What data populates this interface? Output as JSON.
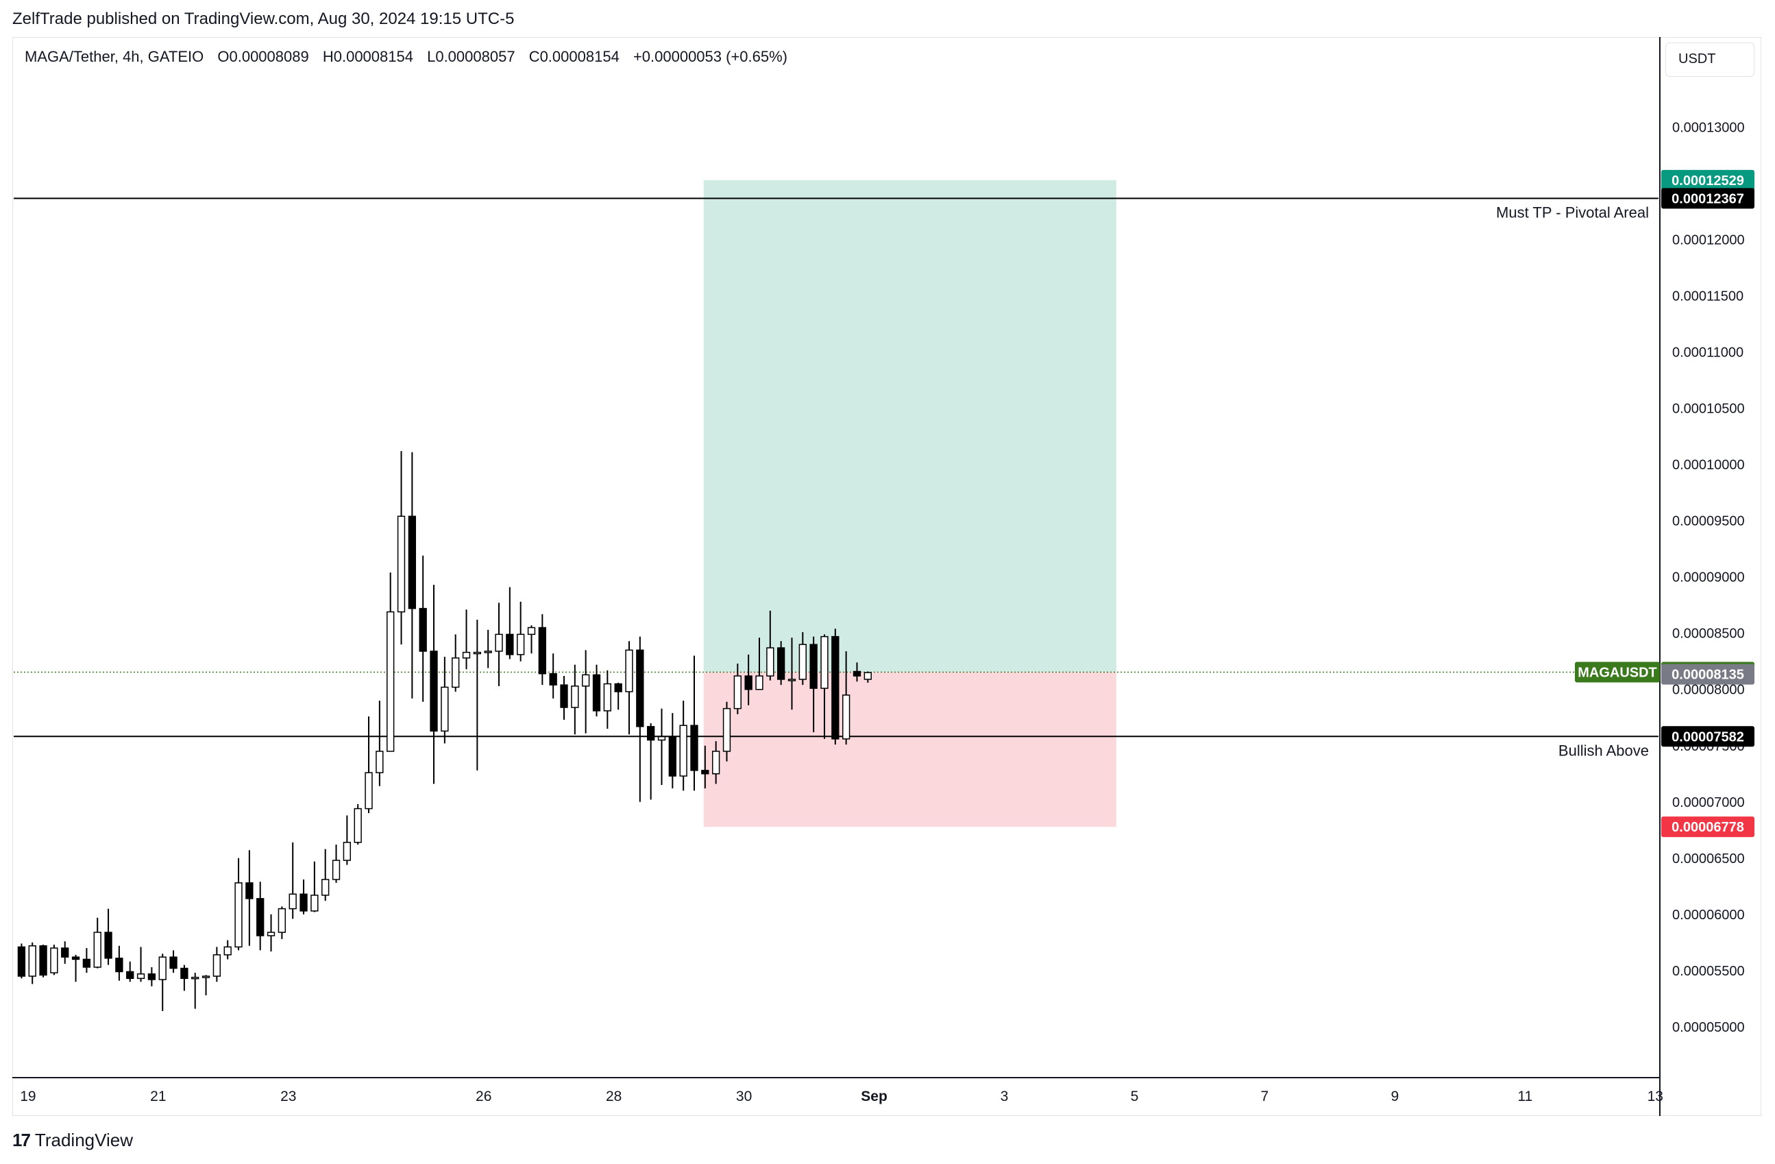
{
  "header": {
    "publisher_line": "ZelfTrade published on TradingView.com, Aug 30, 2024 19:15 UTC-5",
    "symbol_line": "MAGA/Tether, 4h, GATEIO",
    "ohlc": {
      "open": "O0.00008089",
      "high": "H0.00008154",
      "low": "L0.00008057",
      "close": "C0.00008154",
      "change": "+0.00000053 (+0.65%)"
    }
  },
  "currency_label": "USDT",
  "brand": {
    "logo": "17",
    "name": "TradingView"
  },
  "colors": {
    "up_body": "#ffffff",
    "down_body": "#000000",
    "wick": "#000000",
    "profit_zone": "#d0ebe4",
    "loss_zone": "#fbd8dc",
    "target_tag": "#089981",
    "stop_tag": "#f23645",
    "symbol_tag": "#3b7a1c",
    "level_tag": "#000000",
    "prev_tag": "#787b86"
  },
  "chart_data": {
    "type": "candlestick",
    "timeframe": "4h",
    "y_axis": {
      "range": [
        4.56e-05,
        0.0001379
      ],
      "ticks": [
        "0.00005000",
        "0.00005500",
        "0.00006000",
        "0.00006500",
        "0.00007000",
        "0.00007500",
        "0.00008000",
        "0.00008500",
        "0.00009000",
        "0.00009500",
        "0.00010000",
        "0.00010500",
        "0.00011000",
        "0.00011500",
        "0.00012000",
        "0.00012500",
        "0.00013000"
      ]
    },
    "x_axis": {
      "ticks": [
        {
          "label": "19",
          "day": 19
        },
        {
          "label": "21",
          "day": 21
        },
        {
          "label": "23",
          "day": 23
        },
        {
          "label": "26",
          "day": 26
        },
        {
          "label": "28",
          "day": 28
        },
        {
          "label": "30",
          "day": 30
        },
        {
          "label": "Sep",
          "day": 32
        },
        {
          "label": "3",
          "day": 34
        },
        {
          "label": "5",
          "day": 36
        },
        {
          "label": "7",
          "day": 38
        },
        {
          "label": "9",
          "day": 40
        },
        {
          "label": "11",
          "day": 42
        },
        {
          "label": "13",
          "day": 44
        }
      ],
      "range_days": [
        18.78,
        44.05
      ]
    },
    "candle_start_day": 18.9,
    "candle_step_days": 0.1667,
    "candles": [
      [
        5.71,
        5.45,
        5.74,
        5.43
      ],
      [
        5.45,
        5.72,
        5.75,
        5.38
      ],
      [
        5.72,
        5.46,
        5.73,
        5.44
      ],
      [
        5.48,
        5.7,
        5.73,
        5.46
      ],
      [
        5.7,
        5.62,
        5.76,
        5.56
      ],
      [
        5.62,
        5.6,
        5.64,
        5.4
      ],
      [
        5.6,
        5.53,
        5.7,
        5.48
      ],
      [
        5.53,
        5.84,
        5.97,
        5.52
      ],
      [
        5.84,
        5.61,
        6.05,
        5.55
      ],
      [
        5.61,
        5.49,
        5.72,
        5.41
      ],
      [
        5.49,
        5.43,
        5.58,
        5.4
      ],
      [
        5.43,
        5.47,
        5.71,
        5.4
      ],
      [
        5.47,
        5.42,
        5.53,
        5.36
      ],
      [
        5.42,
        5.62,
        5.65,
        5.14
      ],
      [
        5.62,
        5.52,
        5.68,
        5.48
      ],
      [
        5.52,
        5.43,
        5.55,
        5.32
      ],
      [
        5.43,
        5.44,
        5.48,
        5.16
      ],
      [
        5.44,
        5.45,
        5.46,
        5.28
      ],
      [
        5.45,
        5.64,
        5.71,
        5.4
      ],
      [
        5.64,
        5.71,
        5.77,
        5.6
      ],
      [
        5.71,
        6.28,
        6.5,
        5.68
      ],
      [
        6.28,
        6.14,
        6.57,
        5.72
      ],
      [
        6.14,
        5.81,
        6.29,
        5.68
      ],
      [
        5.81,
        5.84,
        6.0,
        5.67
      ],
      [
        5.84,
        6.05,
        6.07,
        5.78
      ],
      [
        6.05,
        6.18,
        6.64,
        5.96
      ],
      [
        6.18,
        6.03,
        6.31,
        6.0
      ],
      [
        6.03,
        6.17,
        6.47,
        6.02
      ],
      [
        6.17,
        6.31,
        6.58,
        6.12
      ],
      [
        6.31,
        6.48,
        6.62,
        6.28
      ],
      [
        6.48,
        6.64,
        6.88,
        6.44
      ],
      [
        6.64,
        6.94,
        6.98,
        6.62
      ],
      [
        6.94,
        7.26,
        7.76,
        6.9
      ],
      [
        7.26,
        7.45,
        7.9,
        7.14
      ],
      [
        7.45,
        8.69,
        9.04,
        7.49
      ],
      [
        8.69,
        9.54,
        10.12,
        8.4
      ],
      [
        9.54,
        8.72,
        10.11,
        7.92
      ],
      [
        8.72,
        8.34,
        9.19,
        7.89
      ],
      [
        8.34,
        7.63,
        8.93,
        7.16
      ],
      [
        7.63,
        8.02,
        8.29,
        7.52
      ],
      [
        8.02,
        8.28,
        8.49,
        7.98
      ],
      [
        8.28,
        8.33,
        8.71,
        8.18
      ],
      [
        8.33,
        8.33,
        8.62,
        7.28
      ],
      [
        8.33,
        8.34,
        8.53,
        8.19
      ],
      [
        8.34,
        8.49,
        8.77,
        8.03
      ],
      [
        8.49,
        8.31,
        8.91,
        8.27
      ],
      [
        8.31,
        8.49,
        8.78,
        8.25
      ],
      [
        8.49,
        8.55,
        8.57,
        8.32
      ],
      [
        8.55,
        8.14,
        8.67,
        8.04
      ],
      [
        8.14,
        8.04,
        8.32,
        7.92
      ],
      [
        8.04,
        7.84,
        8.12,
        7.73
      ],
      [
        7.84,
        8.03,
        8.22,
        7.6
      ],
      [
        8.03,
        8.13,
        8.35,
        7.61
      ],
      [
        8.13,
        7.81,
        8.22,
        7.76
      ],
      [
        7.81,
        8.05,
        8.17,
        7.65
      ],
      [
        8.05,
        7.98,
        8.06,
        7.82
      ],
      [
        7.98,
        8.35,
        8.43,
        7.6
      ],
      [
        8.35,
        7.67,
        8.47,
        7.0
      ],
      [
        7.67,
        7.55,
        7.7,
        7.02
      ],
      [
        7.55,
        7.58,
        7.83,
        7.15
      ],
      [
        7.58,
        7.23,
        7.79,
        7.12
      ],
      [
        7.23,
        7.68,
        7.9,
        7.1
      ],
      [
        7.68,
        7.28,
        8.3,
        7.1
      ],
      [
        7.28,
        7.25,
        7.5,
        7.12
      ],
      [
        7.25,
        7.45,
        7.54,
        7.16
      ],
      [
        7.45,
        7.83,
        7.89,
        7.36
      ],
      [
        7.83,
        8.12,
        8.23,
        7.78
      ],
      [
        8.12,
        8.0,
        8.31,
        7.86
      ],
      [
        8.0,
        8.12,
        8.46,
        8.0
      ],
      [
        8.12,
        8.37,
        8.7,
        8.08
      ],
      [
        8.37,
        8.09,
        8.43,
        8.04
      ],
      [
        8.09,
        8.09,
        8.46,
        7.82
      ],
      [
        8.09,
        8.4,
        8.51,
        8.04
      ],
      [
        8.4,
        8.01,
        8.47,
        7.62
      ],
      [
        8.01,
        8.47,
        8.49,
        7.56
      ],
      [
        8.47,
        7.56,
        8.54,
        7.51
      ],
      [
        7.56,
        7.95,
        8.34,
        7.51
      ],
      [
        8.16,
        8.12,
        8.24,
        8.07
      ],
      [
        8.09,
        8.15,
        8.16,
        8.06
      ]
    ],
    "annotations": {
      "horizontal_lines": [
        {
          "label": "Must TP - Pivotal Areal",
          "price": 0.00012367,
          "price_label": "0.00012367"
        },
        {
          "label": "Bullish Above",
          "price": 7.582e-05,
          "price_label": "0.00007582"
        }
      ],
      "long_position": {
        "entry": 8.154e-05,
        "target": 0.00012529,
        "stop": 6.778e-05,
        "target_label": "0.00012529",
        "stop_label": "0.00006778",
        "start_day": 29.38,
        "end_day": 35.72
      },
      "symbol_tag": {
        "name": "MAGAUSDT",
        "price": 8.154e-05,
        "price_label": "0.00008154"
      },
      "secondary_tag": {
        "price": 8.135e-05,
        "price_label": "0.00008135"
      }
    }
  }
}
